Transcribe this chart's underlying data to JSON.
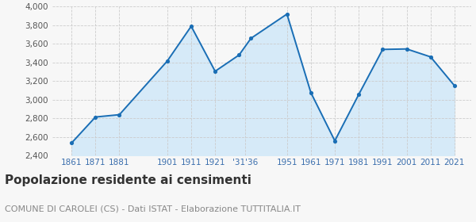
{
  "years": [
    1861,
    1871,
    1881,
    1901,
    1911,
    1921,
    1931,
    1936,
    1951,
    1961,
    1971,
    1981,
    1991,
    2001,
    2011,
    2021
  ],
  "population": [
    2533,
    2813,
    2838,
    3415,
    3789,
    3305,
    3480,
    3660,
    3920,
    3075,
    2557,
    3055,
    3540,
    3545,
    3460,
    3150
  ],
  "line_color": "#1a6eb5",
  "fill_color": "#d6eaf8",
  "marker_color": "#1a6eb5",
  "background_color": "#f7f7f7",
  "grid_color": "#cccccc",
  "ylim": [
    2400,
    4000
  ],
  "yticks": [
    2400,
    2600,
    2800,
    3000,
    3200,
    3400,
    3600,
    3800,
    4000
  ],
  "xlim_left": 1853,
  "xlim_right": 2028,
  "xtick_positions": [
    1861,
    1871,
    1881,
    1901,
    1911,
    1921,
    1933.5,
    1951,
    1961,
    1971,
    1981,
    1991,
    2001,
    2011,
    2021
  ],
  "xtick_labels": [
    "1861",
    "1871",
    "1881",
    "1901",
    "1911",
    "1921",
    "'31'36",
    "1951",
    "1961",
    "1971",
    "1981",
    "1991",
    "2001",
    "2011",
    "2021"
  ],
  "title": "Popolazione residente ai censimenti",
  "subtitle": "COMUNE DI CAROLEI (CS) - Dati ISTAT - Elaborazione TUTTITALIA.IT",
  "title_fontsize": 11,
  "subtitle_fontsize": 8,
  "tick_label_color": "#3a6ead",
  "ytick_label_color": "#555555"
}
